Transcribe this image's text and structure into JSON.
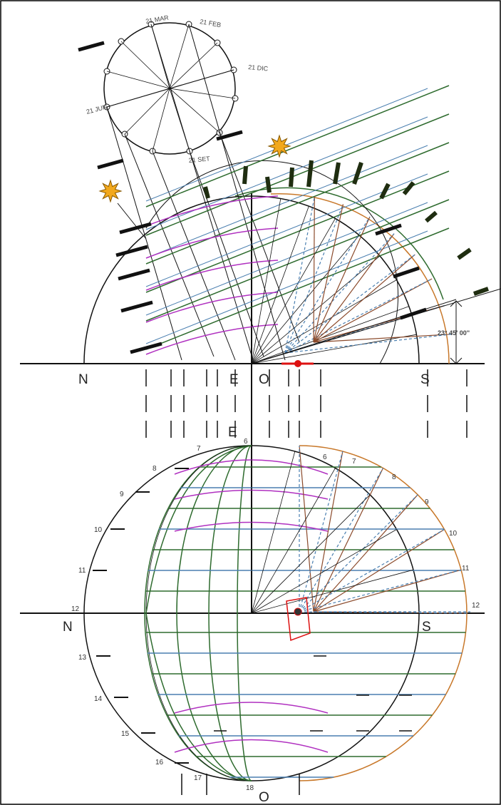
{
  "declination_circle": {
    "labels": [
      "21 MAR",
      "21 FEB",
      "21 DIC",
      "21 JUN",
      "21 SET"
    ]
  },
  "elevation": {
    "cardinals": [
      "N",
      "E",
      "O",
      "S"
    ],
    "angle_label": "23° 45' 00''"
  },
  "plan": {
    "top_label": "E",
    "cardinals": [
      "N",
      "S",
      "O"
    ],
    "hours_left": [
      "6",
      "7",
      "8",
      "9",
      "10",
      "11",
      "12",
      "13",
      "14",
      "15",
      "16",
      "17",
      "18"
    ],
    "hours_right": [
      "6",
      "7",
      "8",
      "9",
      "10",
      "11",
      "12"
    ]
  }
}
